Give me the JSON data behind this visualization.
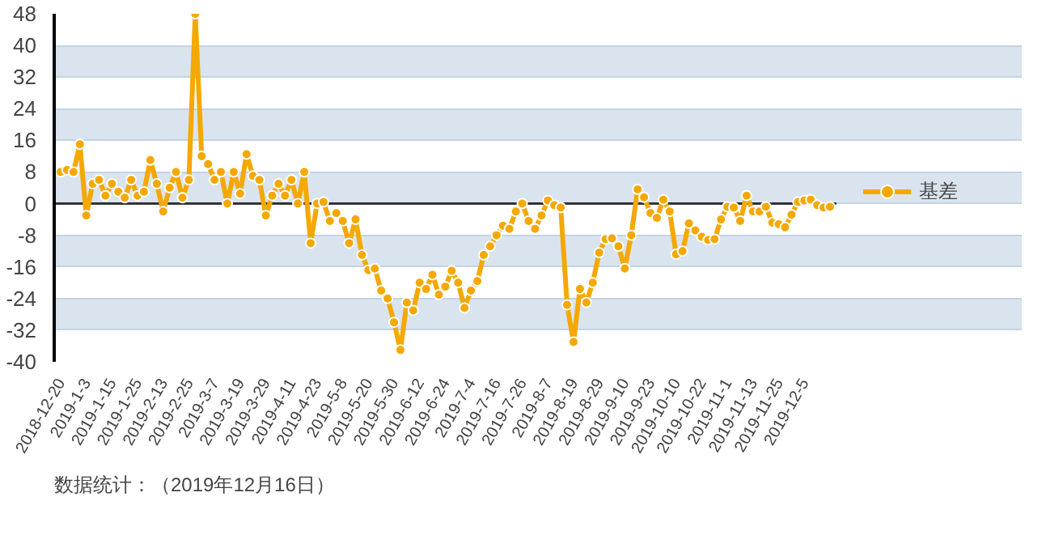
{
  "chart_data": {
    "type": "line",
    "categories": [
      "2018-12-20",
      null,
      null,
      null,
      "2019-1-3",
      null,
      null,
      null,
      "2019-1-15",
      null,
      null,
      null,
      "2019-1-25",
      null,
      null,
      null,
      "2019-2-13",
      null,
      null,
      null,
      "2019-2-25",
      null,
      null,
      null,
      "2019-3-7",
      null,
      null,
      null,
      "2019-3-19",
      null,
      null,
      null,
      "2019-3-29",
      null,
      null,
      null,
      "2019-4-11",
      null,
      null,
      null,
      "2019-4-23",
      null,
      null,
      null,
      "2019-5-8",
      null,
      null,
      null,
      "2019-5-20",
      null,
      null,
      null,
      "2019-5-30",
      null,
      null,
      null,
      "2019-6-12",
      null,
      null,
      null,
      "2019-6-24",
      null,
      null,
      null,
      "2019-7-4",
      null,
      null,
      null,
      "2019-7-16",
      null,
      null,
      null,
      "2019-7-26",
      null,
      null,
      null,
      "2019-8-7",
      null,
      null,
      null,
      "2019-8-19",
      null,
      null,
      null,
      "2019-8-29",
      null,
      null,
      null,
      "2019-9-10",
      null,
      null,
      null,
      "2019-9-23",
      null,
      null,
      null,
      "2019-10-10",
      null,
      null,
      null,
      "2019-10-22",
      null,
      null,
      null,
      "2019-11-1",
      null,
      null,
      null,
      "2019-11-13",
      null,
      null,
      null,
      "2019-11-25",
      null,
      null,
      null,
      "2019-12-5",
      null,
      null,
      null,
      null
    ],
    "series": [
      {
        "name": "基差",
        "color": "#f5a800",
        "values": [
          8,
          8.5,
          8,
          15,
          -3,
          5,
          6,
          2,
          5,
          3,
          1.5,
          6,
          2,
          3,
          11,
          5,
          -2,
          4,
          8,
          1.5,
          6,
          48,
          12,
          10,
          6,
          8,
          0,
          8,
          2.5,
          12.5,
          7,
          6,
          -3,
          2,
          5,
          2,
          6,
          0,
          8,
          -10,
          0,
          0.4,
          -4.4,
          -2.4,
          -4.4,
          -10,
          -4,
          -13,
          -16.8,
          -16.4,
          -22,
          -24,
          -30,
          -37,
          -25,
          -27,
          -20,
          -21.6,
          -18,
          -23,
          -21,
          -17,
          -20,
          -26.4,
          -22,
          -19.6,
          -13,
          -10.8,
          -8,
          -5.6,
          -6.4,
          -2,
          0,
          -4.4,
          -6.4,
          -3,
          0.8,
          -0.4,
          -1,
          -25.6,
          -35,
          -21.6,
          -25,
          -20,
          -12.4,
          -9,
          -8.8,
          -10.8,
          -16.4,
          -8,
          3.6,
          1.6,
          -2.4,
          -3.6,
          1,
          -2,
          -12.8,
          -12,
          -5,
          -6.8,
          -8.4,
          -9.2,
          -9,
          -4,
          -0.8,
          -1,
          -4.4,
          2,
          -2,
          -2,
          -0.8,
          -4.8,
          -5.2,
          -6,
          -2.8,
          0.4,
          0.8,
          1,
          -0.4,
          -1,
          -0.8
        ]
      }
    ],
    "ylim": [
      -40,
      48
    ],
    "yticks": [
      -40,
      -32,
      -24,
      -16,
      -8,
      0,
      8,
      16,
      24,
      32,
      40,
      48
    ],
    "grid": "y",
    "legend": "right",
    "marker": "circle",
    "line_style": "solid",
    "ref_lines": [
      {
        "axis": "y",
        "value": 0,
        "label": null,
        "color": "#333333"
      }
    ],
    "annotations": [
      "数据统计：（2019年12月16日）"
    ]
  }
}
